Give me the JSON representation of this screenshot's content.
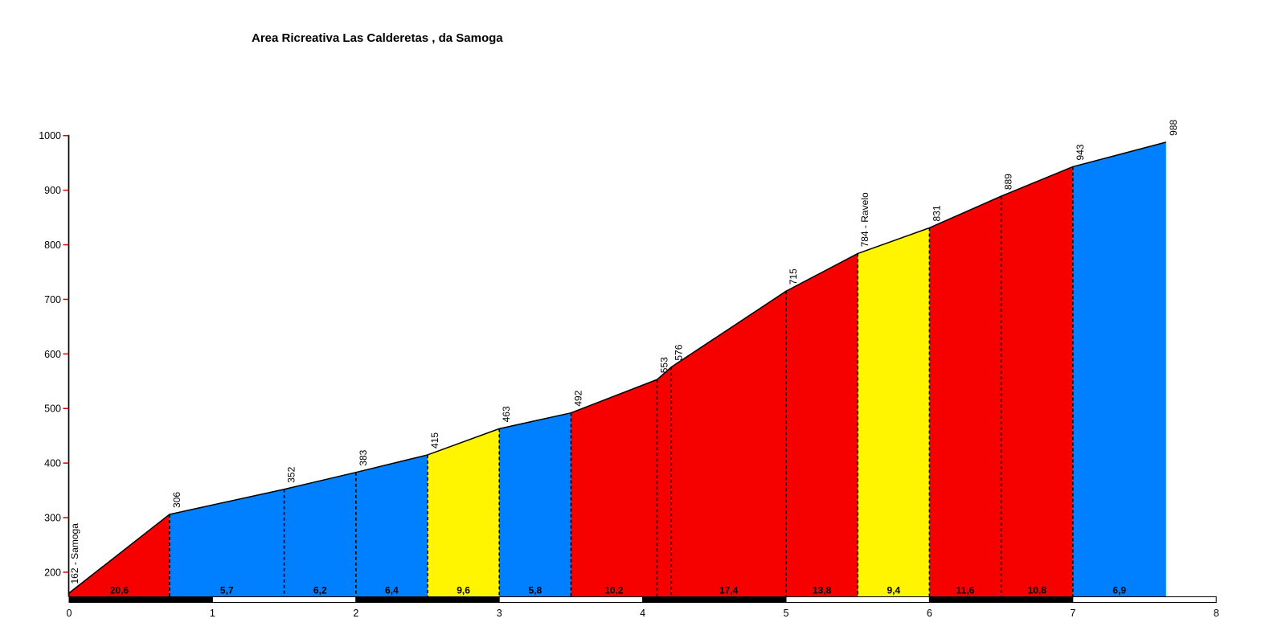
{
  "chart_data": {
    "type": "area",
    "title": "Area Ricreativa Las Calderetas , da Samoga",
    "x_ticks": [
      0,
      1,
      2,
      3,
      4,
      5,
      6,
      7,
      8
    ],
    "y_ticks": [
      200,
      300,
      400,
      500,
      600,
      700,
      800,
      900,
      1000
    ],
    "xlim": [
      0,
      8
    ],
    "ylim": [
      150,
      1000
    ],
    "points": [
      {
        "km": 0.0,
        "elev": 162,
        "label": "162 - Samoga"
      },
      {
        "km": 0.7,
        "elev": 306,
        "label": "306"
      },
      {
        "km": 1.5,
        "elev": 352,
        "label": "352"
      },
      {
        "km": 2.0,
        "elev": 383,
        "label": "383"
      },
      {
        "km": 2.5,
        "elev": 415,
        "label": "415"
      },
      {
        "km": 3.0,
        "elev": 463,
        "label": "463"
      },
      {
        "km": 3.5,
        "elev": 492,
        "label": "492"
      },
      {
        "km": 4.1,
        "elev": 553,
        "label": "553"
      },
      {
        "km": 4.2,
        "elev": 576,
        "label": "576"
      },
      {
        "km": 5.0,
        "elev": 715,
        "label": "715"
      },
      {
        "km": 5.5,
        "elev": 784,
        "label": "784 - Ravelo"
      },
      {
        "km": 6.0,
        "elev": 831,
        "label": "831"
      },
      {
        "km": 6.5,
        "elev": 889,
        "label": "889"
      },
      {
        "km": 7.0,
        "elev": 943,
        "label": "943"
      },
      {
        "km": 7.65,
        "elev": 988,
        "label": "988"
      }
    ],
    "segments": [
      {
        "gradient_label": "20,6",
        "color": "steep"
      },
      {
        "gradient_label": "5,7",
        "color": "easy"
      },
      {
        "gradient_label": "6,2",
        "color": "easy"
      },
      {
        "gradient_label": "6,4",
        "color": "easy"
      },
      {
        "gradient_label": "9,6",
        "color": "mid"
      },
      {
        "gradient_label": "5,8",
        "color": "easy"
      },
      {
        "gradient_label": "10,2",
        "color": "steep"
      },
      {
        "gradient_label": "",
        "color": "steep"
      },
      {
        "gradient_label": "17,4",
        "color": "steep"
      },
      {
        "gradient_label": "13,8",
        "color": "steep"
      },
      {
        "gradient_label": "9,4",
        "color": "mid"
      },
      {
        "gradient_label": "11,6",
        "color": "steep"
      },
      {
        "gradient_label": "10,8",
        "color": "steep"
      },
      {
        "gradient_label": "6,9",
        "color": "easy"
      }
    ]
  },
  "colors": {
    "steep": "#f70000",
    "mid": "#fff500",
    "easy": "#0080ff",
    "axis": "#000000",
    "tick": "#dd0000",
    "bar_dark": "#000000",
    "bar_light": "#ffffff",
    "background": "#ffffff"
  }
}
